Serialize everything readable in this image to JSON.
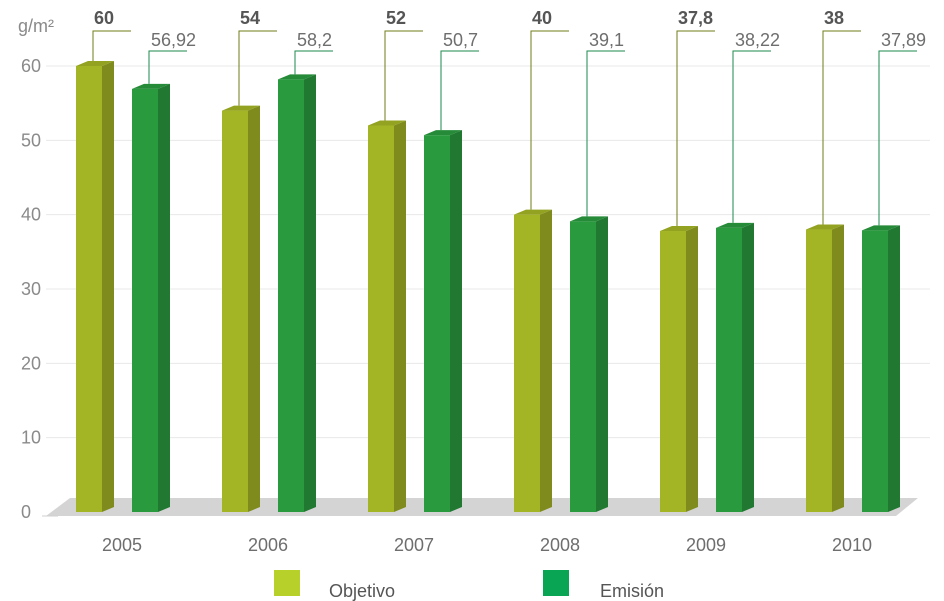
{
  "chart_data": {
    "type": "bar",
    "y_unit_label": "g/m²",
    "ylim": [
      0,
      60
    ],
    "yticks": [
      0,
      10,
      20,
      30,
      40,
      50,
      60
    ],
    "grid": true,
    "legend_placement": "bottom-center",
    "categories": [
      "2005",
      "2006",
      "2007",
      "2008",
      "2009",
      "2010"
    ],
    "series": [
      {
        "name": "Objetivo",
        "values": [
          60,
          54,
          52,
          40,
          37.8,
          38
        ],
        "value_labels": [
          "60",
          "54",
          "52",
          "40",
          "37,8",
          "38"
        ],
        "color": "#a3b425"
      },
      {
        "name": "Emisión",
        "values": [
          56.92,
          58.2,
          50.7,
          39.1,
          38.22,
          37.89
        ],
        "value_labels": [
          "56,92",
          "58,2",
          "50,7",
          "39,1",
          "38,22",
          "37,89"
        ],
        "color": "#2a9a3f"
      }
    ]
  },
  "colors": {
    "objetivo_legend": "#b8d12a",
    "emision_legend": "#0aa455",
    "floor": "#d4d4d4",
    "leader_objetivo": "#6f7d1a",
    "leader_emision": "#1e8a4c"
  }
}
